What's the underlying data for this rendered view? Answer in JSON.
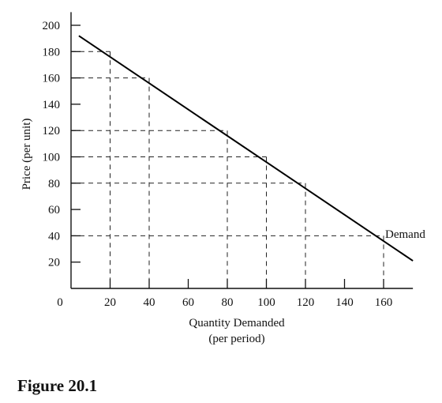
{
  "figure_caption": "Figure 20.1",
  "chart_data": {
    "type": "line",
    "title": "",
    "xlabel": "Quantity Demanded",
    "xlabel_line2": "(per period)",
    "ylabel": "Price (per unit)",
    "xlim": [
      0,
      175
    ],
    "ylim": [
      0,
      210
    ],
    "origin_label": "0",
    "x_ticks": [
      {
        "value": 20,
        "label": "20"
      },
      {
        "value": 40,
        "label": "40"
      },
      {
        "value": 60,
        "label": "60"
      },
      {
        "value": 80,
        "label": "80"
      },
      {
        "value": 100,
        "label": "100"
      },
      {
        "value": 120,
        "label": "120"
      },
      {
        "value": 140,
        "label": "140"
      },
      {
        "value": 160,
        "label": "160"
      }
    ],
    "y_ticks": [
      {
        "value": 20,
        "label": "20"
      },
      {
        "value": 40,
        "label": "40"
      },
      {
        "value": 60,
        "label": "60"
      },
      {
        "value": 80,
        "label": "80"
      },
      {
        "value": 100,
        "label": "100"
      },
      {
        "value": 120,
        "label": "120"
      },
      {
        "value": 140,
        "label": "140"
      },
      {
        "value": 160,
        "label": "160"
      },
      {
        "value": 180,
        "label": "180"
      },
      {
        "value": 200,
        "label": "200"
      }
    ],
    "series": [
      {
        "name": "Demand",
        "color": "#000000",
        "x": [
          4,
          175
        ],
        "y": [
          192,
          21
        ]
      }
    ],
    "reference_points": [
      {
        "x": 20,
        "y": 180
      },
      {
        "x": 40,
        "y": 160
      },
      {
        "x": 80,
        "y": 120
      },
      {
        "x": 100,
        "y": 100
      },
      {
        "x": 120,
        "y": 80
      },
      {
        "x": 160,
        "y": 40
      }
    ],
    "grid": false,
    "legend": "none"
  }
}
